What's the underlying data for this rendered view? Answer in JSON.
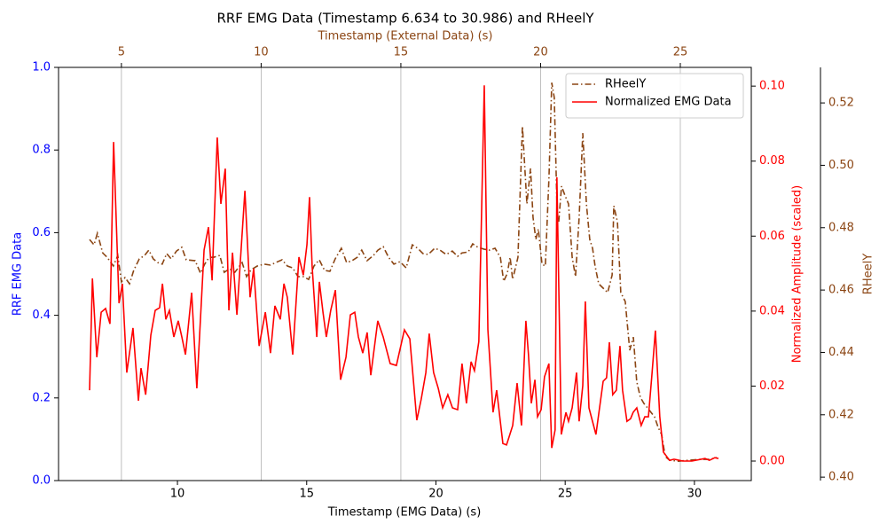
{
  "chart_data": {
    "type": "line",
    "title": "RRF EMG Data (Timestamp 6.634 to 30.986) and RHeelY",
    "xlabel": "Timestamp (EMG Data) (s)",
    "x2label": "Timestamp (External Data) (s)",
    "ylabel": "RRF EMG Data",
    "y2label": "Normalized Amplitude (scaled)",
    "y3label": "RHeelY",
    "xlim": [
      5.4,
      32.2
    ],
    "xticks": [
      10,
      15,
      20,
      25,
      30
    ],
    "x2lim": [
      2.75,
      27.54
    ],
    "x2ticks": [
      5,
      10,
      15,
      20,
      25
    ],
    "ylim": [
      0,
      1
    ],
    "yticks": [
      {
        "value": 0,
        "label": "0.0"
      },
      0.2,
      0.4,
      0.6,
      0.8,
      {
        "value": 1,
        "label": "1.0"
      }
    ],
    "y2lim": [
      -0.0052,
      0.105
    ],
    "y2ticks": [
      {
        "value": 0,
        "label": "0.00"
      },
      0.02,
      0.04,
      0.06,
      0.08,
      {
        "value": 0.1,
        "label": "0.10"
      }
    ],
    "y3lim": [
      0.3989,
      0.5314
    ],
    "y3ticks": [
      {
        "value": 0.4,
        "label": "0.40"
      },
      0.42,
      0.44,
      0.46,
      0.48,
      {
        "value": 0.5,
        "label": "0.50"
      },
      0.52
    ],
    "grid": "x2",
    "legend": "upper right",
    "series": [
      {
        "name": "RHeelY",
        "color": "#8b4513",
        "style": "dashdot",
        "axis": "y3",
        "xaxis": "x2",
        "x": [
          3.86,
          4.02,
          4.14,
          4.33,
          4.49,
          4.71,
          4.87,
          5.0,
          5.13,
          5.29,
          5.44,
          5.64,
          5.83,
          5.98,
          6.14,
          6.3,
          6.46,
          6.62,
          6.78,
          6.97,
          7.16,
          7.32,
          7.64,
          7.83,
          7.98,
          8.14,
          8.3,
          8.52,
          8.68,
          8.87,
          9.06,
          9.32,
          9.48,
          9.64,
          9.86,
          10.11,
          10.33,
          10.52,
          10.75,
          10.94,
          11.13,
          11.32,
          11.51,
          11.7,
          11.89,
          12.08,
          12.27,
          12.46,
          12.65,
          12.87,
          13.06,
          13.25,
          13.44,
          13.6,
          13.79,
          14.02,
          14.18,
          14.37,
          14.56,
          14.75,
          14.97,
          15.19,
          15.41,
          15.6,
          15.79,
          15.98,
          16.21,
          16.4,
          16.62,
          16.84,
          17.03,
          17.19,
          17.41,
          17.57,
          17.76,
          17.98,
          18.18,
          18.37,
          18.56,
          18.68,
          18.81,
          18.91,
          19.0,
          19.19,
          19.35,
          19.51,
          19.64,
          19.73,
          19.83,
          19.92,
          20.05,
          20.17,
          20.3,
          20.4,
          20.49,
          20.59,
          20.65,
          20.75,
          20.87,
          21.0,
          21.13,
          21.25,
          21.38,
          21.51,
          21.64,
          21.76,
          21.86,
          21.95,
          22.08,
          22.24,
          22.4,
          22.56,
          22.62,
          22.75,
          22.87,
          23.03,
          23.19,
          23.32,
          23.44,
          23.57,
          23.7,
          23.83,
          23.95,
          24.08,
          24.21,
          24.33,
          24.46,
          24.62,
          24.94,
          25.25,
          25.73,
          26.05,
          26.3
        ],
        "values": [
          0.4762,
          0.4745,
          0.4782,
          0.4719,
          0.4705,
          0.4677,
          0.4711,
          0.4626,
          0.464,
          0.462,
          0.4663,
          0.47,
          0.4711,
          0.4728,
          0.47,
          0.4688,
          0.4683,
          0.4717,
          0.47,
          0.4725,
          0.4737,
          0.4697,
          0.4694,
          0.4654,
          0.4683,
          0.4705,
          0.4705,
          0.4711,
          0.4657,
          0.4668,
          0.4657,
          0.4688,
          0.4643,
          0.4665,
          0.4677,
          0.4683,
          0.468,
          0.4688,
          0.4697,
          0.4677,
          0.4671,
          0.4643,
          0.4643,
          0.4634,
          0.4677,
          0.4697,
          0.4663,
          0.466,
          0.47,
          0.4734,
          0.4688,
          0.4694,
          0.4705,
          0.4728,
          0.4694,
          0.4711,
          0.4728,
          0.4739,
          0.4705,
          0.4683,
          0.4691,
          0.4671,
          0.4745,
          0.4734,
          0.4717,
          0.4714,
          0.4734,
          0.4728,
          0.4714,
          0.4725,
          0.4708,
          0.4719,
          0.4722,
          0.4748,
          0.4737,
          0.4731,
          0.4728,
          0.4734,
          0.4705,
          0.4628,
          0.4654,
          0.4705,
          0.4634,
          0.4705,
          0.5126,
          0.4876,
          0.499,
          0.4833,
          0.4762,
          0.4796,
          0.4683,
          0.4677,
          0.4961,
          0.5265,
          0.5217,
          0.4856,
          0.4819,
          0.4933,
          0.4904,
          0.4876,
          0.4705,
          0.4643,
          0.4833,
          0.5103,
          0.4876,
          0.4762,
          0.4734,
          0.4677,
          0.462,
          0.4606,
          0.4592,
          0.4648,
          0.487,
          0.4819,
          0.4592,
          0.4563,
          0.4407,
          0.4449,
          0.4307,
          0.4256,
          0.4236,
          0.4222,
          0.4208,
          0.4193,
          0.4159,
          0.4137,
          0.4066,
          0.4054,
          0.4051,
          0.4054,
          0.4057,
          0.4057,
          0.4063
        ]
      },
      {
        "name": "Normalized EMG Data",
        "color": "#ff0000",
        "style": "solid",
        "axis": "y2",
        "x": [
          6.6,
          6.71,
          6.88,
          7.05,
          7.22,
          7.39,
          7.53,
          7.74,
          7.87,
          8.04,
          8.28,
          8.49,
          8.59,
          8.77,
          8.97,
          9.14,
          9.31,
          9.42,
          9.55,
          9.69,
          9.86,
          10.03,
          10.17,
          10.31,
          10.55,
          10.75,
          11.03,
          11.2,
          11.34,
          11.54,
          11.68,
          11.85,
          11.99,
          12.13,
          12.3,
          12.61,
          12.81,
          12.95,
          13.16,
          13.4,
          13.6,
          13.77,
          13.98,
          14.12,
          14.25,
          14.46,
          14.7,
          14.87,
          15.01,
          15.11,
          15.21,
          15.39,
          15.49,
          15.63,
          15.76,
          15.93,
          16.11,
          16.31,
          16.52,
          16.69,
          16.86,
          17.0,
          17.17,
          17.34,
          17.48,
          17.75,
          17.96,
          18.23,
          18.47,
          18.78,
          18.99,
          19.26,
          19.43,
          19.61,
          19.74,
          19.91,
          20.09,
          20.26,
          20.46,
          20.64,
          20.84,
          21.01,
          21.18,
          21.36,
          21.49,
          21.66,
          21.87,
          22.01,
          22.21,
          22.35,
          22.59,
          22.73,
          22.86,
          22.97,
          23.14,
          23.31,
          23.48,
          23.58,
          23.69,
          23.83,
          23.93,
          24.07,
          24.2,
          24.37,
          24.48,
          24.61,
          24.68,
          24.85,
          25.03,
          25.13,
          25.27,
          25.44,
          25.54,
          25.68,
          25.78,
          25.92,
          26.19,
          26.47,
          26.6,
          26.71,
          26.84,
          26.98,
          27.12,
          27.22,
          27.39,
          27.53,
          27.63,
          27.77,
          27.94,
          28.08,
          28.22,
          28.35,
          28.49,
          28.66,
          28.8,
          29.04,
          29.21,
          29.55,
          29.9,
          30.41,
          30.58,
          30.79,
          30.93
        ],
        "values": [
          0.0189,
          0.0487,
          0.0277,
          0.0397,
          0.0407,
          0.0366,
          0.0851,
          0.0421,
          0.0473,
          0.0236,
          0.0355,
          0.0161,
          0.0248,
          0.0177,
          0.0336,
          0.0402,
          0.0409,
          0.0473,
          0.0378,
          0.0402,
          0.0331,
          0.0374,
          0.0331,
          0.0284,
          0.0449,
          0.0194,
          0.0563,
          0.0624,
          0.0482,
          0.0863,
          0.0686,
          0.078,
          0.0402,
          0.0556,
          0.039,
          0.0721,
          0.0437,
          0.0513,
          0.0307,
          0.0397,
          0.0288,
          0.0414,
          0.0378,
          0.0473,
          0.0437,
          0.0284,
          0.0544,
          0.0496,
          0.0577,
          0.0704,
          0.052,
          0.0331,
          0.0478,
          0.0397,
          0.0331,
          0.0402,
          0.0456,
          0.0217,
          0.0277,
          0.039,
          0.0397,
          0.0331,
          0.0288,
          0.0343,
          0.0229,
          0.0374,
          0.0331,
          0.026,
          0.0255,
          0.035,
          0.0326,
          0.0109,
          0.0165,
          0.0236,
          0.034,
          0.0236,
          0.0194,
          0.0142,
          0.0177,
          0.0142,
          0.0137,
          0.026,
          0.0154,
          0.0265,
          0.0241,
          0.0319,
          0.1002,
          0.035,
          0.013,
          0.0189,
          0.0047,
          0.0043,
          0.0071,
          0.0095,
          0.0208,
          0.0095,
          0.0374,
          0.0284,
          0.0154,
          0.0217,
          0.0118,
          0.0137,
          0.0225,
          0.026,
          0.0035,
          0.0083,
          0.0757,
          0.0071,
          0.013,
          0.0106,
          0.0142,
          0.0236,
          0.0106,
          0.0201,
          0.0426,
          0.0142,
          0.0071,
          0.0213,
          0.0222,
          0.0317,
          0.0177,
          0.0189,
          0.0307,
          0.0189,
          0.0106,
          0.0113,
          0.013,
          0.0142,
          0.0095,
          0.0118,
          0.0118,
          0.0225,
          0.0348,
          0.0118,
          0.0024,
          0.0002,
          0.0005,
          0,
          0,
          0.0007,
          0.0002,
          0.0009,
          0.0007
        ]
      }
    ]
  }
}
